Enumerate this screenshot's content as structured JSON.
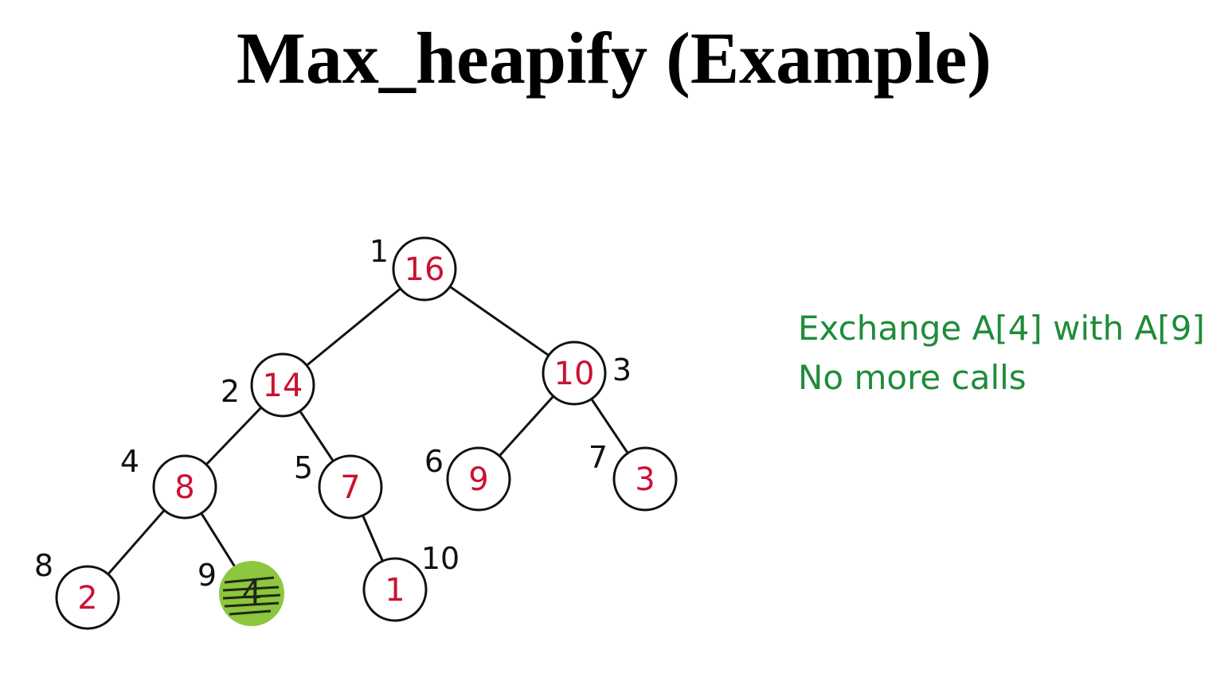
{
  "title": "Max_heapify (Example)",
  "colors": {
    "value_text": "#cc1133",
    "note_text": "#1e8c3a",
    "highlight_fill": "#8dc63f",
    "edge": "#111111"
  },
  "tree": {
    "nodes": [
      {
        "index": "1",
        "value": "16",
        "highlighted": false
      },
      {
        "index": "2",
        "value": "14",
        "highlighted": false
      },
      {
        "index": "3",
        "value": "10",
        "highlighted": false
      },
      {
        "index": "4",
        "value": "8",
        "highlighted": false
      },
      {
        "index": "5",
        "value": "7",
        "highlighted": false
      },
      {
        "index": "6",
        "value": "9",
        "highlighted": false
      },
      {
        "index": "7",
        "value": "3",
        "highlighted": false
      },
      {
        "index": "8",
        "value": "2",
        "highlighted": false
      },
      {
        "index": "9",
        "value": "4",
        "highlighted": true
      },
      {
        "index": "10",
        "value": "1",
        "highlighted": false
      }
    ]
  },
  "notes": {
    "line1": "Exchange A[4] with A[9]",
    "line2": "No more calls"
  }
}
